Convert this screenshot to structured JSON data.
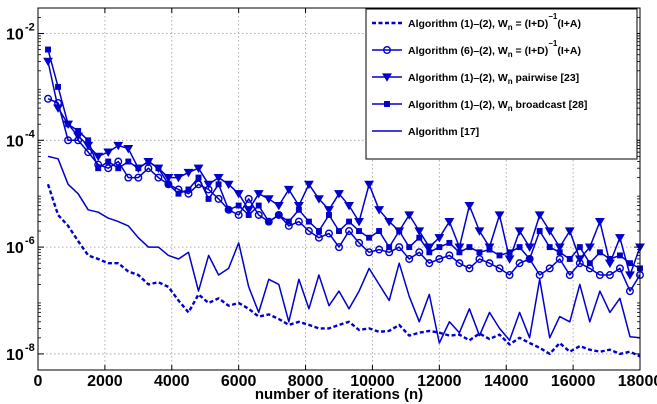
{
  "chart_data": {
    "type": "line",
    "xlabel": "number of iterations (n)",
    "ylabel": "",
    "xlim": [
      0,
      18000
    ],
    "ylim": [
      5e-09,
      0.03
    ],
    "yscale": "log",
    "grid": true,
    "legend_position": "top-right",
    "x_ticks": [
      0,
      2000,
      4000,
      6000,
      8000,
      10000,
      12000,
      14000,
      16000,
      18000
    ],
    "x_tick_labels": [
      "0",
      "2000",
      "4000",
      "6000",
      "8000",
      "10000",
      "12000",
      "14000",
      "16000",
      "18000"
    ],
    "y_ticks": [
      1e-08,
      1e-06,
      0.0001,
      0.01
    ],
    "y_tick_labels": [
      {
        "base": "10",
        "exp": "-8"
      },
      {
        "base": "10",
        "exp": "-6"
      },
      {
        "base": "10",
        "exp": "-4"
      },
      {
        "base": "10",
        "exp": "-2"
      }
    ],
    "x": [
      300,
      600,
      900,
      1200,
      1500,
      1800,
      2100,
      2400,
      2700,
      3000,
      3300,
      3600,
      3900,
      4200,
      4500,
      4800,
      5100,
      5400,
      5700,
      6000,
      6300,
      6600,
      6900,
      7200,
      7500,
      7800,
      8100,
      8400,
      8700,
      9000,
      9300,
      9600,
      9900,
      10200,
      10500,
      10800,
      11100,
      11400,
      11700,
      12000,
      12300,
      12600,
      12900,
      13200,
      13500,
      13800,
      14100,
      14400,
      14700,
      15000,
      15300,
      15600,
      15900,
      16200,
      16500,
      16800,
      17100,
      17400,
      17700,
      18000
    ],
    "series": [
      {
        "name": "Algorithm (1)–(2), Wₙ = (I+D)⁻¹(I+A)",
        "legend": {
          "pre": "Algorithm (1)–(2), W",
          "sub": "n",
          "mid": " = (I+D)",
          "sup": "−1",
          "post": "(I+A)"
        },
        "color": "#0000cc",
        "line": "dashed",
        "marker": "none",
        "values": [
          1.5e-05,
          4e-06,
          2.5e-06,
          1.3e-06,
          7e-07,
          6e-07,
          5e-07,
          5e-07,
          3.5e-07,
          3e-07,
          2e-07,
          2.2e-07,
          1.8e-07,
          1e-07,
          6e-08,
          1.3e-07,
          9e-08,
          1.1e-07,
          8e-08,
          9e-08,
          7e-08,
          5e-08,
          5.5e-08,
          4.5e-08,
          3.5e-08,
          4e-08,
          3.5e-08,
          3e-08,
          3e-08,
          3.5e-08,
          4e-08,
          2.8e-08,
          3e-08,
          2.6e-08,
          2.7e-08,
          3.5e-08,
          2.2e-08,
          2.5e-08,
          2.7e-08,
          2.5e-08,
          2.2e-08,
          2.3e-08,
          1.8e-08,
          2.4e-08,
          1.9e-08,
          2.3e-08,
          1.5e-08,
          2e-08,
          1.6e-08,
          1.3e-08,
          1e-08,
          1.6e-08,
          1.1e-08,
          1.4e-08,
          1.2e-08,
          1.1e-08,
          1.2e-08,
          1e-08,
          1.1e-08,
          9e-09
        ]
      },
      {
        "name": "Algorithm (6)–(2), Wₙ = (I+D)⁻¹(I+A)",
        "legend": {
          "pre": "Algorithm (6)–(2), W",
          "sub": "n",
          "mid": " = (I+D)",
          "sup": "−1",
          "post": "(I+A)"
        },
        "color": "#0000cc",
        "line": "solid",
        "marker": "circle",
        "values": [
          0.0006,
          0.0005,
          0.0001,
          0.0001,
          6e-05,
          3.5e-05,
          3e-05,
          4e-05,
          2e-05,
          2e-05,
          3e-05,
          2e-05,
          1.5e-05,
          1.2e-05,
          1e-05,
          1.5e-05,
          1.2e-05,
          8e-06,
          5e-06,
          4e-06,
          8e-06,
          4e-06,
          3e-06,
          4e-06,
          2.5e-06,
          3e-06,
          2e-06,
          1.5e-06,
          1.8e-06,
          1e-06,
          2e-06,
          1.2e-06,
          8e-07,
          9e-07,
          8e-07,
          1e-06,
          6e-07,
          8e-07,
          5e-07,
          6e-07,
          7e-07,
          5e-07,
          4e-07,
          6e-07,
          5e-07,
          4e-07,
          3e-07,
          5e-07,
          6e-07,
          3e-07,
          4e-07,
          6e-07,
          3e-07,
          5e-07,
          4e-07,
          3e-07,
          3e-07,
          4e-07,
          1.5e-07,
          3e-07
        ]
      },
      {
        "name": "Algorithm (1)–(2), Wₙ pairwise [23]",
        "legend": {
          "pre": "Algorithm (1)–(2), W",
          "sub": "n",
          "mid": " pairwise [23]",
          "sup": "",
          "post": ""
        },
        "color": "#0000cc",
        "line": "solid",
        "marker": "triangle-down",
        "values": [
          0.003,
          0.0004,
          0.0002,
          0.00012,
          8e-05,
          5e-05,
          6e-05,
          8e-05,
          7e-05,
          3e-05,
          4e-05,
          3e-05,
          2e-05,
          2e-05,
          2.5e-05,
          3e-05,
          1.5e-05,
          2e-05,
          1.5e-05,
          1e-05,
          5e-06,
          1e-05,
          8e-06,
          6e-06,
          1.2e-05,
          6e-06,
          1.5e-05,
          8e-06,
          5e-06,
          1e-05,
          6e-06,
          3e-06,
          1.5e-05,
          5e-06,
          3e-06,
          2e-06,
          4e-06,
          2e-06,
          1e-06,
          1.5e-06,
          3e-06,
          1e-06,
          6e-06,
          2e-06,
          1e-06,
          4e-06,
          6e-07,
          2e-06,
          1e-06,
          4e-06,
          2e-06,
          1e-06,
          2e-06,
          6e-07,
          1e-06,
          3e-06,
          5e-07,
          1.5e-06,
          3e-07,
          1e-06
        ]
      },
      {
        "name": "Algorithm (1)–(2), Wₙ broadcast [28]",
        "legend": {
          "pre": "Algorithm (1)–(2), W",
          "sub": "n",
          "mid": " broadcast [28]",
          "sup": "",
          "post": ""
        },
        "color": "#0000cc",
        "line": "solid",
        "marker": "square",
        "values": [
          0.005,
          0.001,
          0.0002,
          0.00015,
          0.0001,
          3e-05,
          4e-05,
          3e-05,
          4e-05,
          3e-05,
          4e-05,
          3e-05,
          1.5e-05,
          1e-05,
          1.2e-05,
          2e-05,
          8e-06,
          1.5e-05,
          5e-06,
          6e-06,
          4e-06,
          6e-06,
          3e-06,
          4e-06,
          3e-06,
          5e-06,
          3e-06,
          2e-06,
          4e-06,
          2e-06,
          3e-06,
          2e-06,
          1.5e-06,
          2e-06,
          1e-06,
          2e-06,
          1e-06,
          1.5e-06,
          8e-07,
          1e-06,
          1.2e-06,
          8e-07,
          1e-06,
          8e-07,
          9e-07,
          7e-07,
          8e-07,
          1e-06,
          6e-07,
          2e-06,
          1e-06,
          8e-07,
          6e-07,
          1e-06,
          5e-07,
          8e-07,
          6e-07,
          7e-07,
          5e-07,
          4e-07
        ]
      },
      {
        "name": "Algorithm [17]",
        "legend": {
          "pre": "Algorithm [17]",
          "sub": "",
          "mid": "",
          "sup": "",
          "post": ""
        },
        "color": "#0000cc",
        "line": "solid",
        "marker": "none",
        "values": [
          5e-05,
          4.5e-05,
          1.5e-05,
          1e-05,
          5e-06,
          4.5e-06,
          3.5e-06,
          3e-06,
          2.5e-06,
          1.5e-06,
          1e-06,
          1e-06,
          7e-07,
          6e-07,
          8e-07,
          1.5e-07,
          7e-07,
          3e-07,
          4e-07,
          1.2e-06,
          1.8e-07,
          6e-08,
          2.5e-07,
          2e-07,
          4e-08,
          2.5e-07,
          7e-08,
          3e-07,
          8e-08,
          1.5e-07,
          7e-08,
          1.5e-07,
          4e-07,
          2e-07,
          1e-07,
          5e-07,
          1.2e-07,
          4e-08,
          1.3e-07,
          1.6e-08,
          4e-08,
          2.5e-08,
          7e-08,
          2.2e-08,
          6e-08,
          3e-08,
          1.8e-08,
          6e-08,
          2e-08,
          2.5e-07,
          2e-08,
          5e-08,
          4e-08,
          2e-07,
          4e-08,
          1.5e-07,
          6e-08,
          1.1e-07,
          2.1e-08,
          2e-08
        ]
      }
    ]
  }
}
